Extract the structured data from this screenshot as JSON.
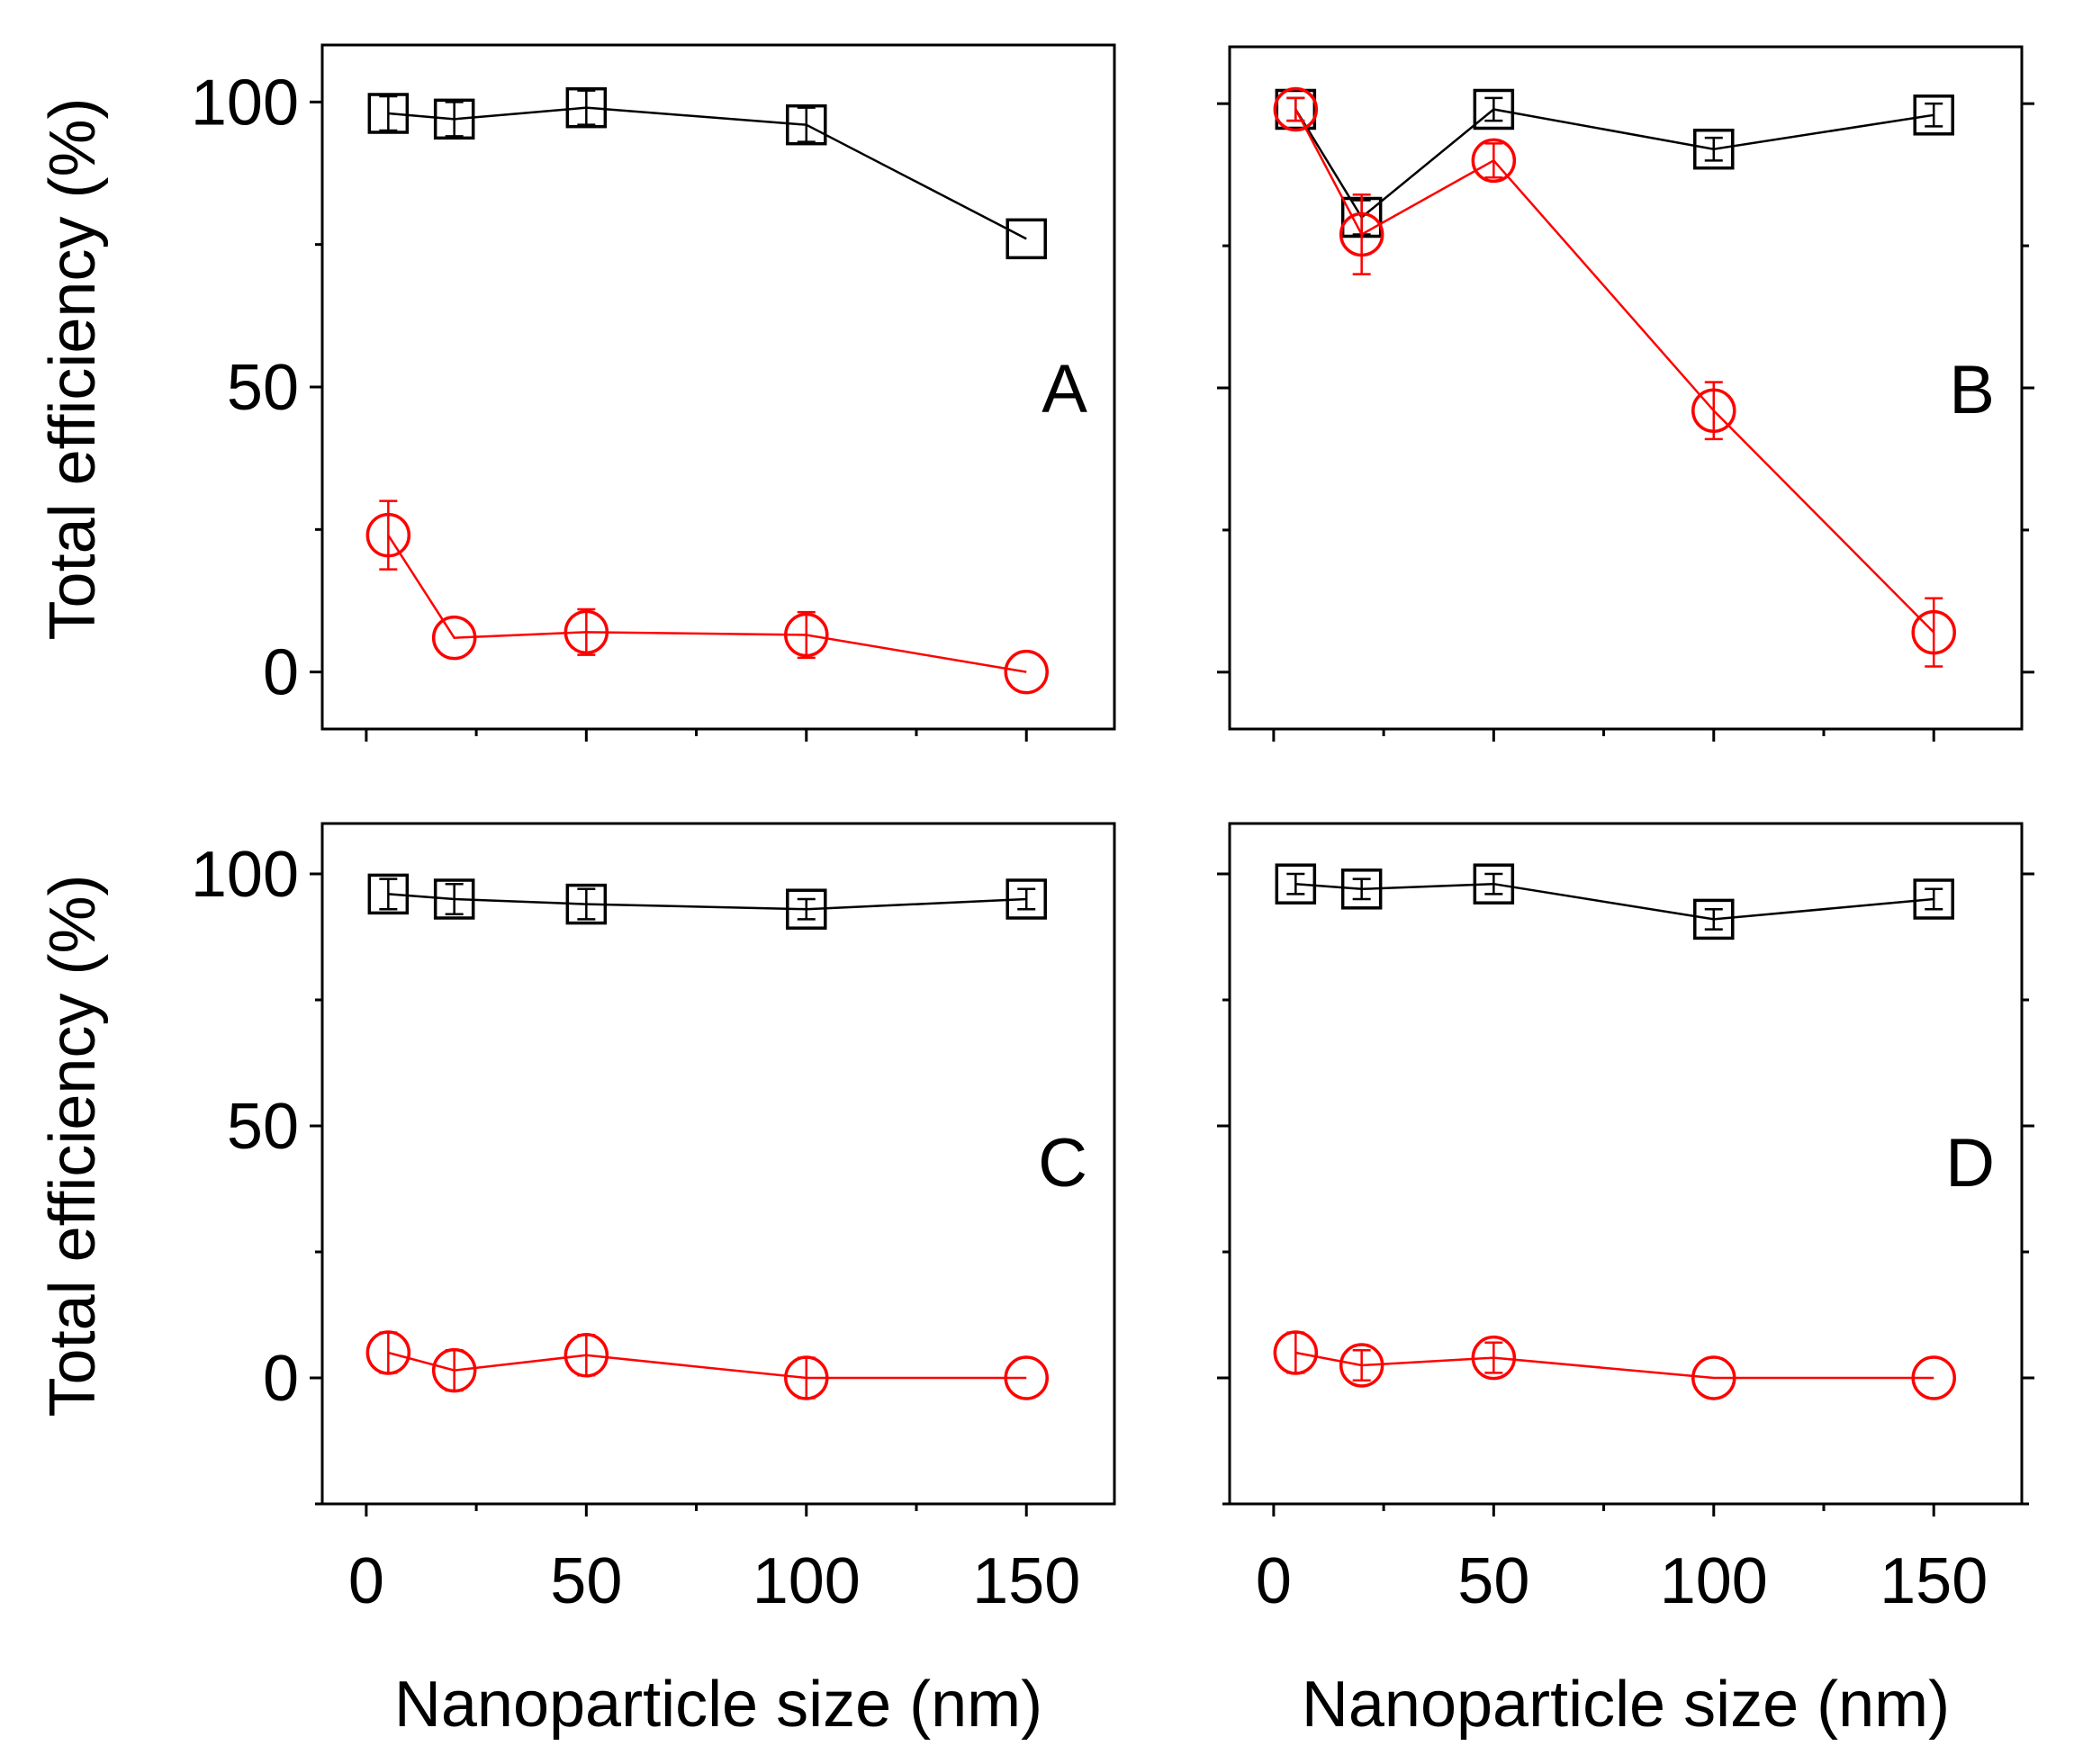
{
  "chart_data": [
    {
      "panel": "A",
      "type": "line",
      "xlabel": "",
      "ylabel": "Total efficiency (%)",
      "xlim": [
        -10,
        170
      ],
      "ylim": [
        -10,
        110
      ],
      "x_ticks": [
        "0",
        "50",
        "100",
        "150"
      ],
      "y_ticks": [
        "0",
        "50",
        "100"
      ],
      "series": [
        {
          "name": "squares",
          "marker": "square",
          "color": "#000000",
          "x": [
            5,
            20,
            50,
            100,
            150
          ],
          "y": [
            98,
            97,
            99,
            96,
            76
          ],
          "err": [
            3,
            3,
            3,
            3,
            0
          ]
        },
        {
          "name": "circles",
          "marker": "circle",
          "color": "#ff0000",
          "x": [
            5,
            20,
            50,
            100,
            150
          ],
          "y": [
            24,
            6,
            7,
            6.5,
            0
          ],
          "err": [
            6,
            0,
            4,
            4,
            0
          ]
        }
      ]
    },
    {
      "panel": "B",
      "type": "line",
      "xlabel": "",
      "ylabel": "",
      "xlim": [
        -10,
        170
      ],
      "ylim": [
        -10,
        110
      ],
      "x_ticks": [],
      "y_ticks": [],
      "series": [
        {
          "name": "squares",
          "marker": "square",
          "color": "#000000",
          "x": [
            5,
            20,
            50,
            100,
            150
          ],
          "y": [
            99,
            80,
            99,
            92,
            98
          ],
          "err": [
            2,
            3,
            2,
            2,
            2
          ]
        },
        {
          "name": "circles",
          "marker": "circle",
          "color": "#ff0000",
          "x": [
            5,
            20,
            50,
            100,
            150
          ],
          "y": [
            99,
            77,
            90,
            46,
            7
          ],
          "err": [
            2,
            7,
            3,
            5,
            6
          ]
        }
      ]
    },
    {
      "panel": "C",
      "type": "line",
      "xlabel": "Nanoparticle size (nm)",
      "ylabel": "Total efficiency (%)",
      "xlim": [
        -10,
        170
      ],
      "ylim": [
        -25,
        110
      ],
      "x_ticks": [
        "0",
        "50",
        "100",
        "150"
      ],
      "y_ticks": [
        "0",
        "50",
        "100"
      ],
      "series": [
        {
          "name": "squares",
          "marker": "square",
          "color": "#000000",
          "x": [
            5,
            20,
            50,
            100,
            150
          ],
          "y": [
            96,
            95,
            94,
            93,
            95
          ],
          "err": [
            3,
            3,
            3,
            2,
            2
          ]
        },
        {
          "name": "circles",
          "marker": "circle",
          "color": "#ff0000",
          "x": [
            5,
            20,
            50,
            100,
            150
          ],
          "y": [
            5,
            1.5,
            4.5,
            0,
            0
          ],
          "err": [
            4,
            4,
            4,
            4,
            0
          ]
        }
      ]
    },
    {
      "panel": "D",
      "type": "line",
      "xlabel": "Nanoparticle size (nm)",
      "ylabel": "",
      "xlim": [
        -10,
        170
      ],
      "ylim": [
        -25,
        110
      ],
      "x_ticks": [
        "0",
        "50",
        "100",
        "150"
      ],
      "y_ticks": [],
      "series": [
        {
          "name": "squares",
          "marker": "square",
          "color": "#000000",
          "x": [
            5,
            20,
            50,
            100,
            150
          ],
          "y": [
            98,
            97,
            98,
            91,
            95
          ],
          "err": [
            2,
            2,
            2,
            2,
            2
          ]
        },
        {
          "name": "circles",
          "marker": "circle",
          "color": "#ff0000",
          "x": [
            5,
            20,
            50,
            100,
            150
          ],
          "y": [
            5,
            2.5,
            4,
            0,
            0
          ],
          "err": [
            4,
            3,
            3,
            0,
            0
          ]
        }
      ]
    }
  ]
}
